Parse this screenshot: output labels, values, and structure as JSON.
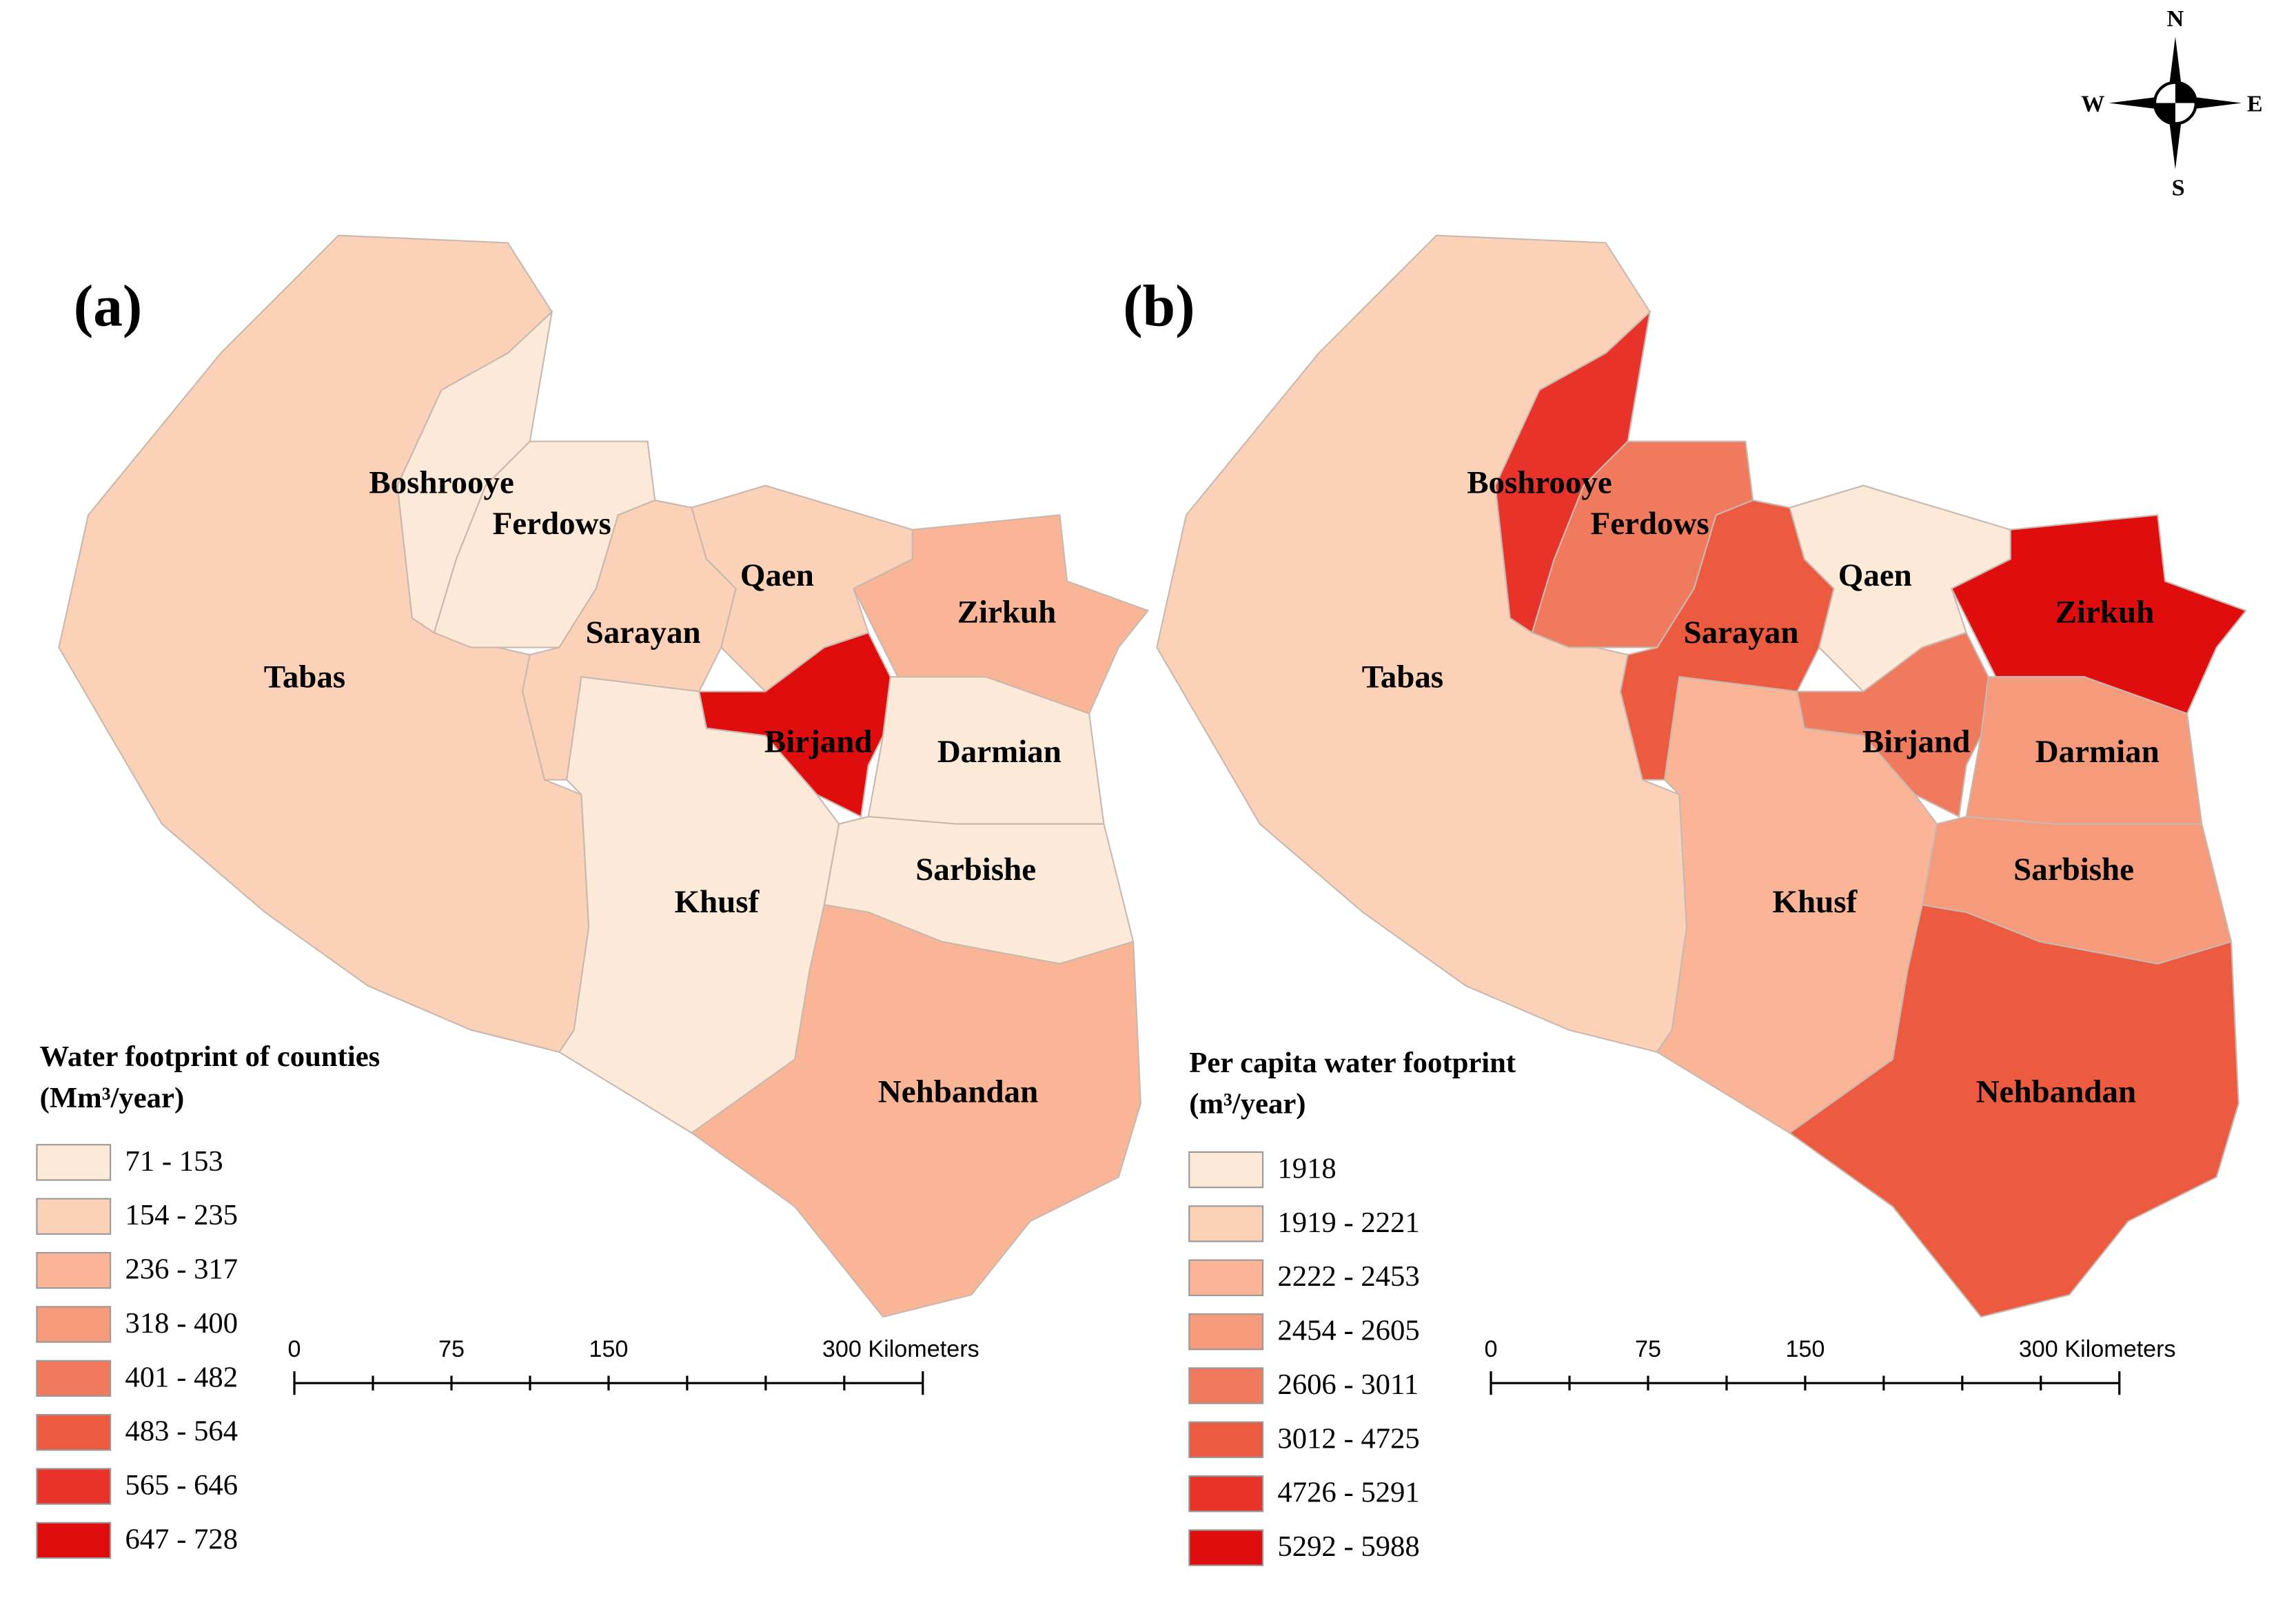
{
  "compass": {
    "n": "N",
    "s": "S",
    "w": "W",
    "e": "E"
  },
  "panels": [
    {
      "label": "(a)",
      "legend_title": "Water footprint of counties",
      "legend_unit": "(Mm³/year)",
      "legend": [
        {
          "label": "71 - 153",
          "color": "#fde9d8"
        },
        {
          "label": "154 - 235",
          "color": "#fbd2b8"
        },
        {
          "label": "236 - 317",
          "color": "#f9b595"
        },
        {
          "label": "318 - 400",
          "color": "#f59a7a"
        },
        {
          "label": "401 - 482",
          "color": "#f07a5e"
        },
        {
          "label": "483 - 564",
          "color": "#ec5a40"
        },
        {
          "label": "565 - 646",
          "color": "#e8332a"
        },
        {
          "label": "647 - 728",
          "color": "#e00d0f"
        }
      ],
      "counties": [
        {
          "name": "Tabas",
          "color": "#fbd2b8"
        },
        {
          "name": "Boshrooye",
          "color": "#fde9d8"
        },
        {
          "name": "Ferdows",
          "color": "#fde9d8"
        },
        {
          "name": "Sarayan",
          "color": "#fbd2b8"
        },
        {
          "name": "Qaen",
          "color": "#fbd2b8"
        },
        {
          "name": "Zirkuh",
          "color": "#f9b595"
        },
        {
          "name": "Birjand",
          "color": "#e00d0f"
        },
        {
          "name": "Darmian",
          "color": "#fde9d8"
        },
        {
          "name": "Sarbishe",
          "color": "#fde9d8"
        },
        {
          "name": "Khusf",
          "color": "#fde9d8"
        },
        {
          "name": "Nehbandan",
          "color": "#f9b595"
        }
      ],
      "scale": [
        "0",
        "75",
        "150",
        "300 Kilometers"
      ]
    },
    {
      "label": "(b)",
      "legend_title": "Per capita water footprint",
      "legend_unit": "(m³/year)",
      "legend": [
        {
          "label": "1918",
          "color": "#fde9d8"
        },
        {
          "label": "1919 - 2221",
          "color": "#fbd2b8"
        },
        {
          "label": "2222 - 2453",
          "color": "#f9b595"
        },
        {
          "label": "2454 - 2605",
          "color": "#f59a7a"
        },
        {
          "label": "2606 - 3011",
          "color": "#f07a5e"
        },
        {
          "label": "3012 - 4725",
          "color": "#ec5a40"
        },
        {
          "label": "4726 - 5291",
          "color": "#e8332a"
        },
        {
          "label": "5292 - 5988",
          "color": "#e00d0f"
        }
      ],
      "counties": [
        {
          "name": "Tabas",
          "color": "#fbd2b8"
        },
        {
          "name": "Boshrooye",
          "color": "#e8332a"
        },
        {
          "name": "Ferdows",
          "color": "#f07a5e"
        },
        {
          "name": "Sarayan",
          "color": "#ec5a40"
        },
        {
          "name": "Qaen",
          "color": "#fde9d8"
        },
        {
          "name": "Zirkuh",
          "color": "#e00d0f"
        },
        {
          "name": "Birjand",
          "color": "#f07a5e"
        },
        {
          "name": "Darmian",
          "color": "#f59a7a"
        },
        {
          "name": "Sarbishe",
          "color": "#f59a7a"
        },
        {
          "name": "Khusf",
          "color": "#f9b595"
        },
        {
          "name": "Nehbandan",
          "color": "#ec5a40"
        }
      ],
      "scale": [
        "0",
        "75",
        "150",
        "300 Kilometers"
      ]
    }
  ]
}
